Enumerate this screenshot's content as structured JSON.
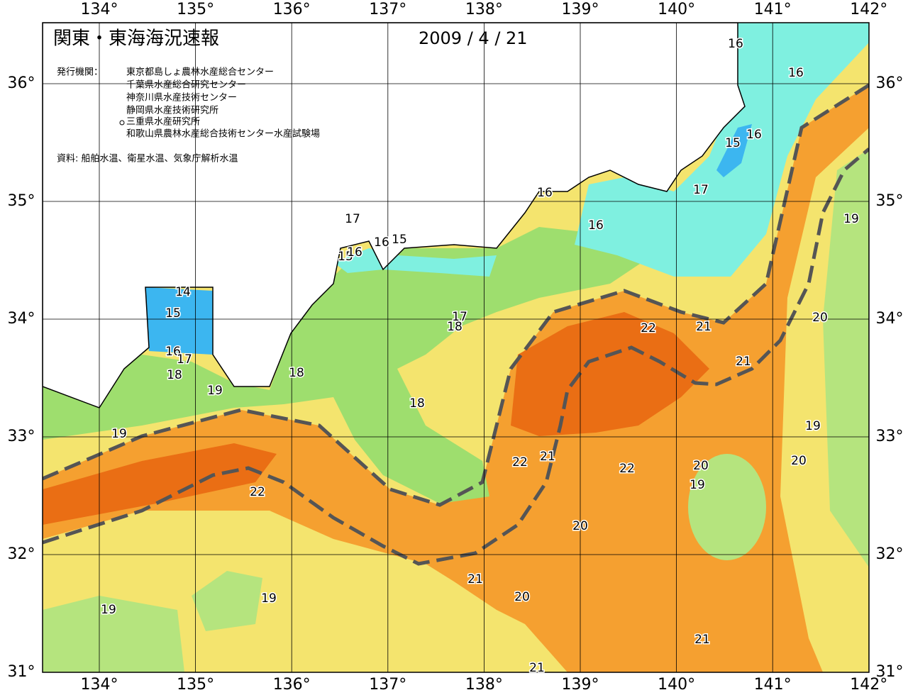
{
  "header": {
    "title": "関東・東海海況速報",
    "date": "2009 / 4 / 21"
  },
  "publishers": {
    "label": "発行機関：",
    "items": [
      "東京都島しょ農林水産総合センター",
      "千葉県水産総合研究センター",
      "神奈川県水産技術センター",
      "静岡県水産技術研究所",
      "三重県水産研究所",
      "和歌山県農林水産総合技術センター水産試験場"
    ]
  },
  "source": "資料: 船舶水温、衛星水温、気象庁解析水温",
  "map": {
    "lon_ticks": [
      {
        "value": 134,
        "label": "134°"
      },
      {
        "value": 135,
        "label": "135°"
      },
      {
        "value": 136,
        "label": "136°"
      },
      {
        "value": 137,
        "label": "137°"
      },
      {
        "value": 138,
        "label": "138°"
      },
      {
        "value": 139,
        "label": "139°"
      },
      {
        "value": 140,
        "label": "140°"
      },
      {
        "value": 141,
        "label": "141°"
      },
      {
        "value": 142,
        "label": "142°"
      }
    ],
    "lat_ticks": [
      {
        "value": 36,
        "label": "36°"
      },
      {
        "value": 35,
        "label": "35°"
      },
      {
        "value": 34,
        "label": "34°"
      },
      {
        "value": 33,
        "label": "33°"
      },
      {
        "value": 32,
        "label": "32°"
      },
      {
        "value": 31,
        "label": "31°"
      }
    ],
    "contour_labels": [
      16,
      16,
      15,
      16,
      17,
      16,
      16,
      17,
      16,
      15,
      15,
      16,
      14,
      15,
      16,
      17,
      18,
      18,
      19,
      19,
      17,
      18,
      22,
      21,
      21,
      20,
      19,
      19,
      20,
      18,
      22,
      21,
      22,
      20,
      19,
      22,
      20,
      21,
      20,
      19,
      19,
      21,
      21
    ]
  }
}
